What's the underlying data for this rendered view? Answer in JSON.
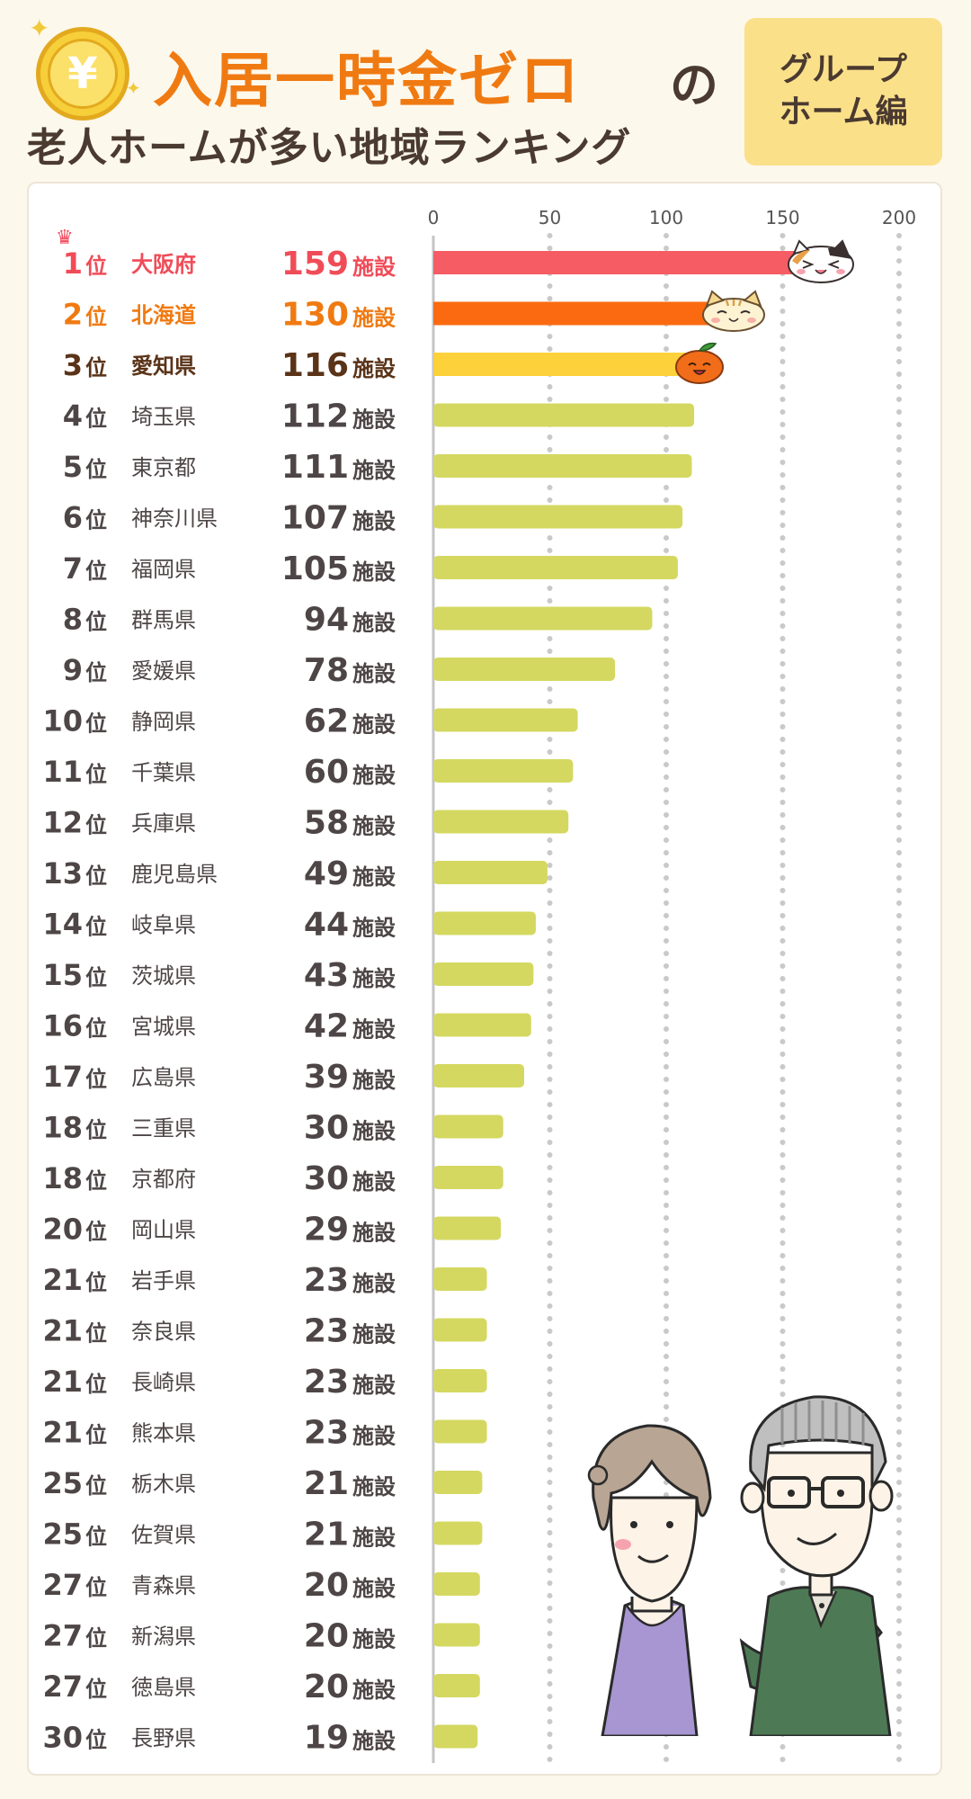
{
  "header": {
    "yen_symbol": "¥",
    "title_main": "入居一時金ゼロ",
    "title_particle": "の",
    "title_sub": "老人ホームが多い地域ランキング",
    "badge_line1": "グループ",
    "badge_line2": "ホーム編"
  },
  "colors": {
    "rank1": "#f55c64",
    "rank2": "#fb6a10",
    "rank3": "#fdd13a",
    "rest": "#d4d860",
    "rank1_text": "#f04c58",
    "rank2_text": "#f07a12",
    "rank3_text": "#5a3318",
    "rest_text": "#4e4646"
  },
  "chart_data": {
    "type": "bar",
    "orientation": "horizontal",
    "unit": "施設",
    "rank_suffix": "位",
    "xlim": [
      0,
      200
    ],
    "xticks": [
      0,
      50,
      100,
      150,
      200
    ],
    "grid": "vertical dotted",
    "rows": [
      {
        "rank": "1",
        "pref": "大阪府",
        "value": 159
      },
      {
        "rank": "2",
        "pref": "北海道",
        "value": 130
      },
      {
        "rank": "3",
        "pref": "愛知県",
        "value": 116
      },
      {
        "rank": "4",
        "pref": "埼玉県",
        "value": 112
      },
      {
        "rank": "5",
        "pref": "東京都",
        "value": 111
      },
      {
        "rank": "6",
        "pref": "神奈川県",
        "value": 107
      },
      {
        "rank": "7",
        "pref": "福岡県",
        "value": 105
      },
      {
        "rank": "8",
        "pref": "群馬県",
        "value": 94
      },
      {
        "rank": "9",
        "pref": "愛媛県",
        "value": 78
      },
      {
        "rank": "10",
        "pref": "静岡県",
        "value": 62
      },
      {
        "rank": "11",
        "pref": "千葉県",
        "value": 60
      },
      {
        "rank": "12",
        "pref": "兵庫県",
        "value": 58
      },
      {
        "rank": "13",
        "pref": "鹿児島県",
        "value": 49
      },
      {
        "rank": "14",
        "pref": "岐阜県",
        "value": 44
      },
      {
        "rank": "15",
        "pref": "茨城県",
        "value": 43
      },
      {
        "rank": "16",
        "pref": "宮城県",
        "value": 42
      },
      {
        "rank": "17",
        "pref": "広島県",
        "value": 39
      },
      {
        "rank": "18",
        "pref": "三重県",
        "value": 30
      },
      {
        "rank": "18",
        "pref": "京都府",
        "value": 30
      },
      {
        "rank": "20",
        "pref": "岡山県",
        "value": 29
      },
      {
        "rank": "21",
        "pref": "岩手県",
        "value": 23
      },
      {
        "rank": "21",
        "pref": "奈良県",
        "value": 23
      },
      {
        "rank": "21",
        "pref": "長崎県",
        "value": 23
      },
      {
        "rank": "21",
        "pref": "熊本県",
        "value": 23
      },
      {
        "rank": "25",
        "pref": "栃木県",
        "value": 21
      },
      {
        "rank": "25",
        "pref": "佐賀県",
        "value": 21
      },
      {
        "rank": "27",
        "pref": "青森県",
        "value": 20
      },
      {
        "rank": "27",
        "pref": "新潟県",
        "value": 20
      },
      {
        "rank": "27",
        "pref": "徳島県",
        "value": 20
      },
      {
        "rank": "30",
        "pref": "長野県",
        "value": 19
      }
    ]
  }
}
